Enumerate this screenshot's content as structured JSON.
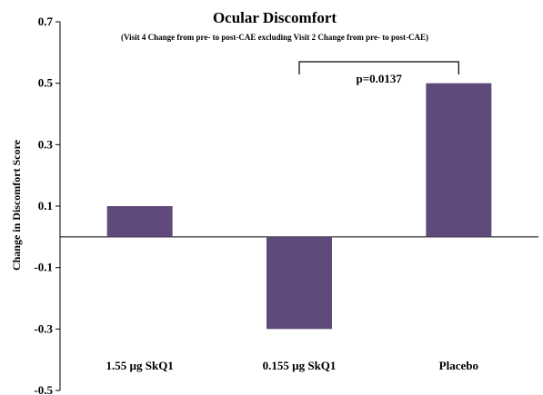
{
  "chart_data": {
    "type": "bar",
    "title": "Ocular Discomfort",
    "subtitle": "(Visit 4 Change from pre- to post-CAE excluding Visit 2 Change from pre- to post-CAE)",
    "xlabel": "",
    "ylabel": "Change in Discomfort Score",
    "categories": [
      "1.55 µg SkQ1",
      "0.155 µg SkQ1",
      "Placebo"
    ],
    "values": [
      0.1,
      -0.3,
      0.5
    ],
    "ylim": [
      -0.5,
      0.7
    ],
    "yticks": [
      "-0.5",
      "-0.3",
      "-0.1",
      "0.1",
      "0.3",
      "0.5",
      "0.7"
    ],
    "bar_color": "#5f4a7b",
    "grid": false,
    "annotation": {
      "text": "p=0.0137",
      "from_category": 1,
      "to_category": 2
    }
  }
}
